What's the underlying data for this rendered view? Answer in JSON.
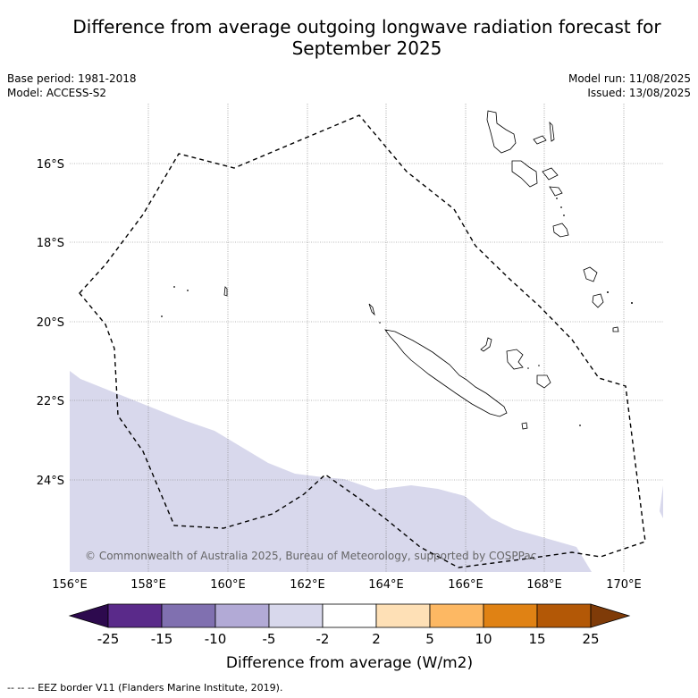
{
  "title": "Difference from average outgoing longwave radiation forecast for September 2025",
  "meta": {
    "base_period": "Base period: 1981-2018",
    "model": "Model: ACCESS-S2",
    "model_run": "Model run: 11/08/2025",
    "issued": "Issued: 13/08/2025"
  },
  "map": {
    "lon_ticks": [
      "156°E",
      "158°E",
      "160°E",
      "162°E",
      "164°E",
      "166°E",
      "168°E",
      "170°E"
    ],
    "lat_ticks": [
      "16°S",
      "18°S",
      "20°S",
      "22°S",
      "24°S"
    ],
    "copyright": "© Commonwealth of Australia 2025, Bureau of Meteorology, supported by COSPPac"
  },
  "colorbar": {
    "colors": [
      "#2d0a4e",
      "#5a2a8a",
      "#8070b0",
      "#b2aad6",
      "#d8d8ec",
      "#ffffff",
      "#fee0b6",
      "#fdb863",
      "#e08214",
      "#b35806",
      "#7f3b08"
    ],
    "labels": [
      "-25",
      "-15",
      "-10",
      "-5",
      "-2",
      "2",
      "5",
      "10",
      "15",
      "25"
    ],
    "title": "Difference from average (W/m2)"
  },
  "footnote": "--  --  -- EEZ border V11 (Flanders Marine Institute, 2019)."
}
